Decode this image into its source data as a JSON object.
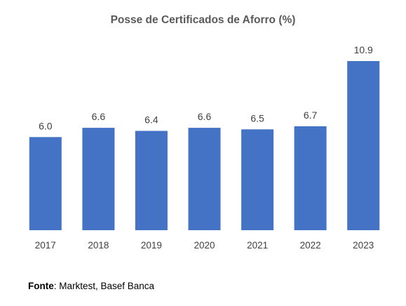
{
  "chart_data": {
    "type": "bar",
    "title": "Posse de Certificados de Aforro (%)",
    "categories": [
      "2017",
      "2018",
      "2019",
      "2020",
      "2021",
      "2022",
      "2023"
    ],
    "values": [
      6.0,
      6.6,
      6.4,
      6.6,
      6.5,
      6.7,
      10.9
    ],
    "value_labels": [
      "6.0",
      "6.6",
      "6.4",
      "6.6",
      "6.5",
      "6.7",
      "10.9"
    ],
    "xlabel": "",
    "ylabel": "",
    "ylim": [
      0,
      10.9
    ],
    "grid": false,
    "legend": "none",
    "bar_color": "#4472C4"
  },
  "source": {
    "label": "Fonte",
    "text": ": Marktest, Basef Banca"
  }
}
